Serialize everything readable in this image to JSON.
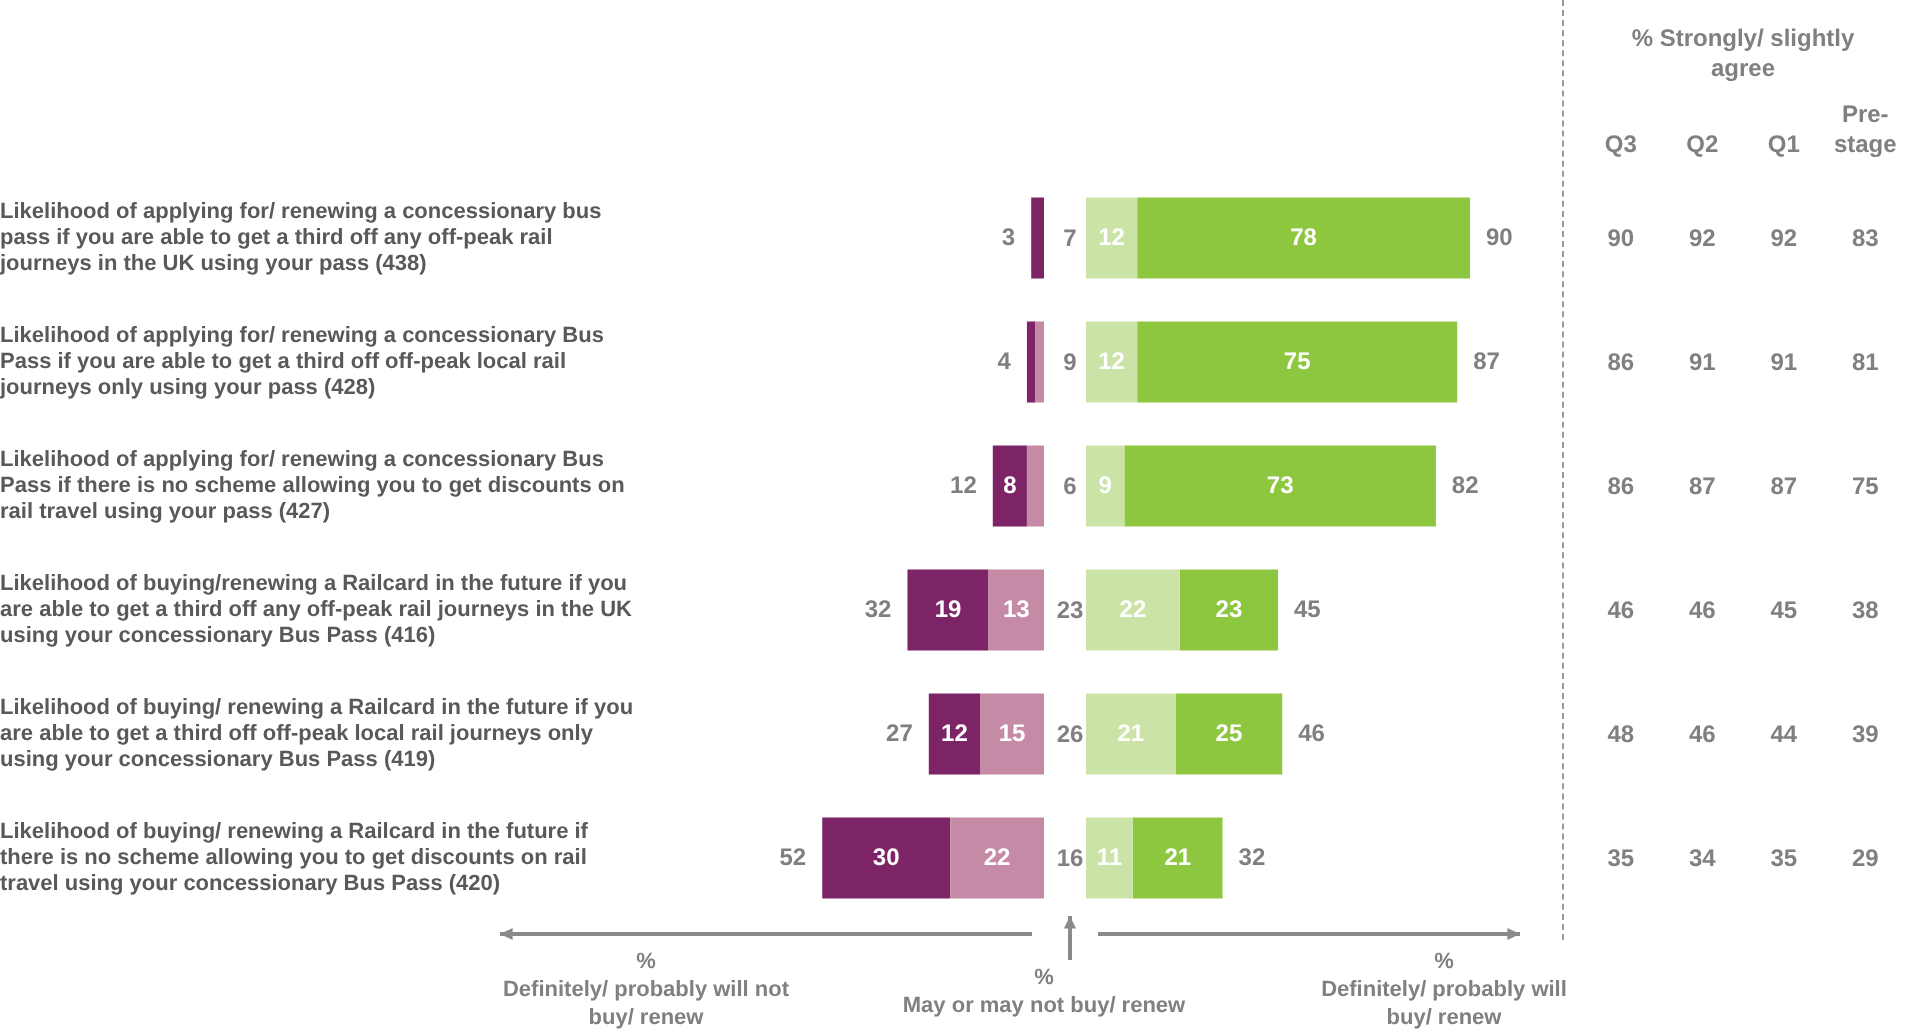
{
  "chart_data": [
    {
      "type": "bar",
      "orientation": "horizontal",
      "stacked": true,
      "tick_labels": "y",
      "xlim": [
        52,
        0
      ],
      "grid": false,
      "legend": false,
      "xlabel": "%\nDefinitely/ probably will not buy/ renew",
      "categories": [
        "Likelihood of applying for/ renewing a concessionary bus pass if you are able to get a third off any off-peak rail journeys in the UK using your pass (438)",
        "Likelihood of applying for/ renewing a concessionary Bus Pass if you are able to get a third off off-peak local rail journeys only using your pass (428)",
        "Likelihood of applying for/ renewing a concessionary Bus Pass if there is no scheme allowing you to get discounts on rail travel using your pass (427)",
        "Likelihood of buying/renewing a Railcard in the future if you are able to get a third off any off-peak rail journeys in the UK using your concessionary Bus Pass (416)",
        "Likelihood of buying/ renewing a Railcard in the future if you are able to get a third off off-peak local rail journeys only using your concessionary Bus Pass (419)",
        "Likelihood of buying/ renewing a Railcard in the future if there is no scheme allowing you to get discounts on rail travel using your concessionary Bus Pass (420)"
      ],
      "series": [
        {
          "color": "#c58aa6",
          "values": [
            0,
            2,
            4,
            13,
            15,
            22
          ],
          "value_labels": [
            null,
            null,
            null,
            "13",
            "15",
            "22"
          ]
        },
        {
          "color": "#7d2467",
          "values": [
            3,
            2,
            8,
            19,
            12,
            30
          ],
          "value_labels": [
            null,
            null,
            "8",
            "19",
            "12",
            "30"
          ]
        }
      ],
      "totals": [
        "3",
        "4",
        "12",
        "32",
        "27",
        "52"
      ]
    },
    {
      "type": "other",
      "xlabel": "%\nMay or may not buy/ renew",
      "categories": [
        null,
        null,
        null,
        null,
        null,
        null
      ],
      "values": [
        7,
        9,
        6,
        23,
        26,
        16
      ],
      "data_labels": true
    },
    {
      "type": "bar",
      "orientation": "horizontal",
      "stacked": true,
      "tick_labels": false,
      "xlim": [
        0,
        90
      ],
      "grid": false,
      "legend": false,
      "xlabel": "%\nDefinitely/ probably will buy/ renew",
      "categories": [
        null,
        null,
        null,
        null,
        null,
        null
      ],
      "series": [
        {
          "color": "#cbe3a6",
          "values": [
            12,
            12,
            9,
            22,
            21,
            11
          ],
          "value_labels": [
            "12",
            "12",
            "9",
            "22",
            "21",
            "11"
          ]
        },
        {
          "color": "#8dc63f",
          "values": [
            78,
            75,
            73,
            23,
            25,
            21
          ],
          "value_labels": [
            "78",
            "75",
            "73",
            "23",
            "25",
            "21"
          ]
        }
      ],
      "totals": [
        "90",
        "87",
        "82",
        "45",
        "46",
        "32"
      ]
    },
    {
      "type": "heatmap",
      "title": "% Strongly/ slightly agree",
      "categories": [
        "Q3",
        "Q2",
        "Q1",
        "Pre-stage"
      ],
      "y_categories": [
        null,
        null,
        null,
        null,
        null,
        null
      ],
      "data_labels": true,
      "cells": [
        [
          90,
          92,
          92,
          83
        ],
        [
          86,
          91,
          91,
          81
        ],
        [
          86,
          87,
          87,
          75
        ],
        [
          46,
          46,
          45,
          38
        ],
        [
          48,
          46,
          44,
          39
        ],
        [
          35,
          34,
          35,
          29
        ]
      ]
    }
  ]
}
